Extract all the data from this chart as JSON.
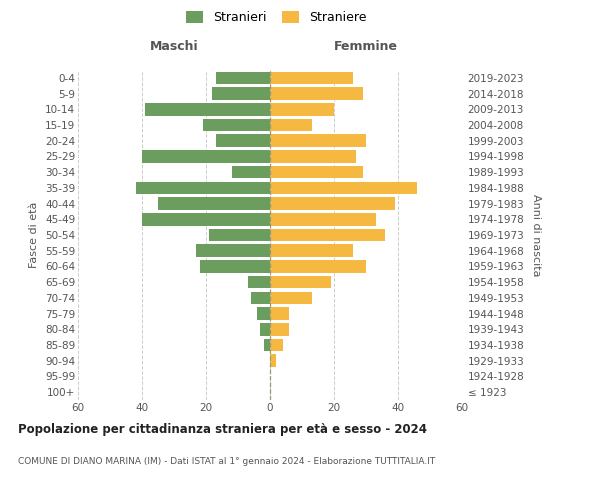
{
  "age_groups": [
    "100+",
    "95-99",
    "90-94",
    "85-89",
    "80-84",
    "75-79",
    "70-74",
    "65-69",
    "60-64",
    "55-59",
    "50-54",
    "45-49",
    "40-44",
    "35-39",
    "30-34",
    "25-29",
    "20-24",
    "15-19",
    "10-14",
    "5-9",
    "0-4"
  ],
  "birth_years": [
    "≤ 1923",
    "1924-1928",
    "1929-1933",
    "1934-1938",
    "1939-1943",
    "1944-1948",
    "1949-1953",
    "1954-1958",
    "1959-1963",
    "1964-1968",
    "1969-1973",
    "1974-1978",
    "1979-1983",
    "1984-1988",
    "1989-1993",
    "1994-1998",
    "1999-2003",
    "2004-2008",
    "2009-2013",
    "2014-2018",
    "2019-2023"
  ],
  "maschi": [
    0,
    0,
    0,
    2,
    3,
    4,
    6,
    7,
    22,
    23,
    19,
    40,
    35,
    42,
    12,
    40,
    17,
    21,
    39,
    18,
    17
  ],
  "femmine": [
    0,
    0,
    2,
    4,
    6,
    6,
    13,
    19,
    30,
    26,
    36,
    33,
    39,
    46,
    29,
    27,
    30,
    13,
    20,
    29,
    26
  ],
  "maschi_color": "#6b9e5e",
  "femmine_color": "#f5b942",
  "title": "Popolazione per cittadinanza straniera per età e sesso - 2024",
  "subtitle": "COMUNE DI DIANO MARINA (IM) - Dati ISTAT al 1° gennaio 2024 - Elaborazione TUTTITALIA.IT",
  "legend_maschi": "Stranieri",
  "legend_femmine": "Straniere",
  "label_maschi": "Maschi",
  "label_femmine": "Femmine",
  "ylabel_left": "Fasce di età",
  "ylabel_right": "Anni di nascita",
  "xlim": 60,
  "bg_color": "#ffffff",
  "grid_color": "#cccccc",
  "text_color": "#555555",
  "title_color": "#222222"
}
